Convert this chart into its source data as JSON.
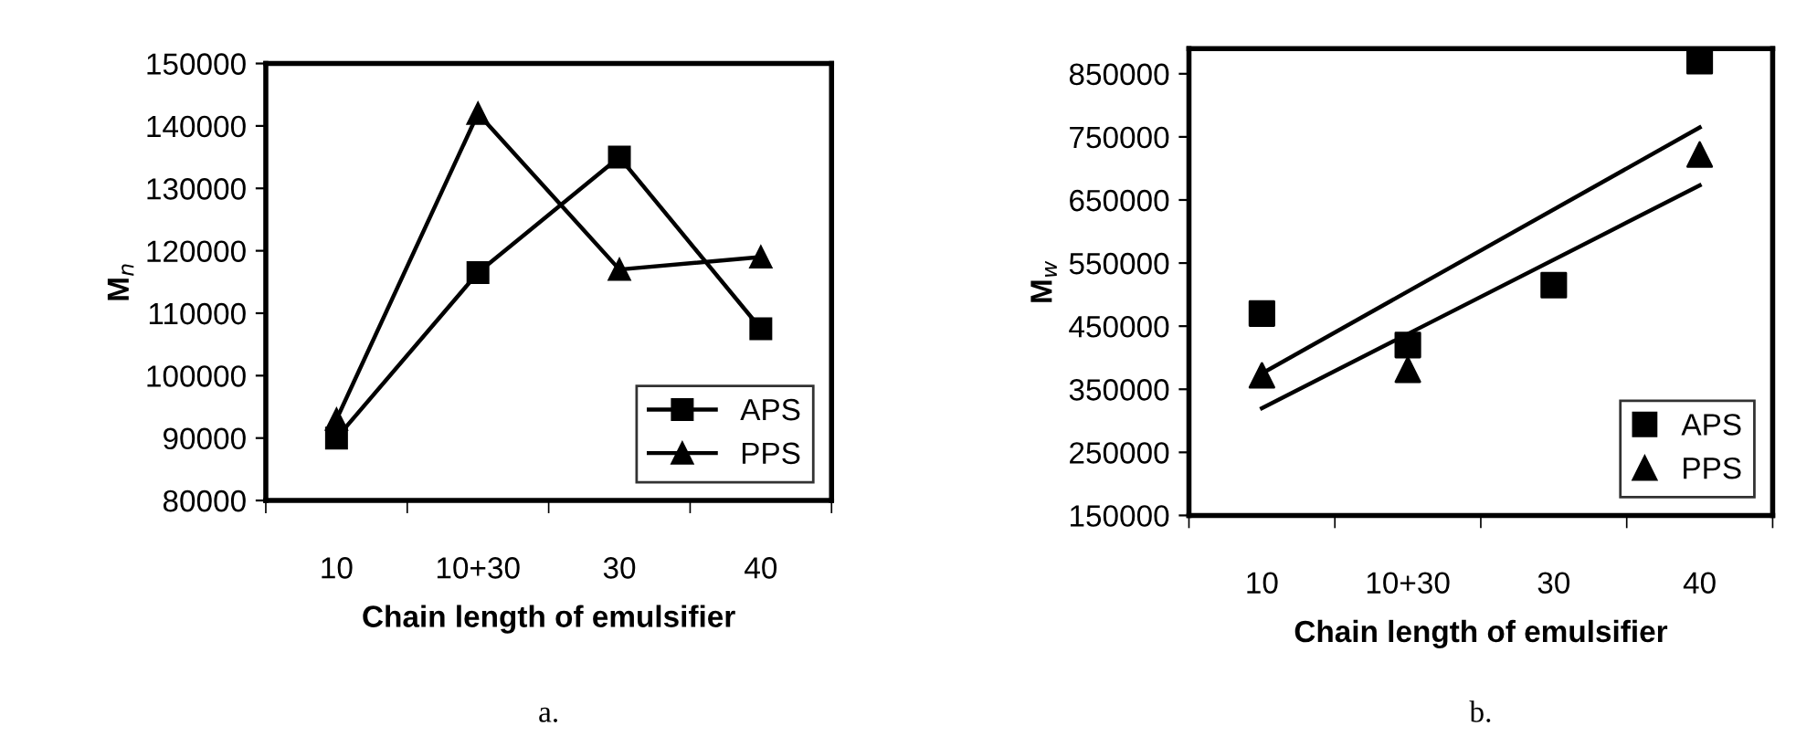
{
  "chart_data": [
    {
      "type": "line",
      "xlabel": "Chain length of emulsifier",
      "ylabel": "M$_{n}$",
      "categories": [
        "10",
        "10+30",
        "30",
        "40"
      ],
      "series": [
        {
          "name": "APS",
          "color": "#000000",
          "marker": "square",
          "values": [
            90000,
            116500,
            135000,
            107500
          ]
        },
        {
          "name": "PPS",
          "color": "#000000",
          "marker": "triangle",
          "values": [
            93000,
            142000,
            117000,
            119000
          ]
        }
      ],
      "ylim": [
        80000,
        150000
      ],
      "yticks": [
        80000,
        90000,
        100000,
        110000,
        120000,
        130000,
        140000,
        150000
      ],
      "grid": false,
      "legend": "lower right",
      "annotations": [
        "a."
      ]
    },
    {
      "type": "scatter",
      "xlabel": "Chain length of emulsifier",
      "ylabel": "M$_{w}$",
      "categories": [
        "10",
        "10+30",
        "30",
        "40"
      ],
      "series": [
        {
          "name": "APS",
          "color": "#000000",
          "marker": "square",
          "values": [
            470000,
            420000,
            515000,
            870000
          ]
        },
        {
          "name": "PPS",
          "color": "#000000",
          "marker": "triangle",
          "values": [
            372000,
            381000,
            null,
            722000
          ]
        },
        {
          "type": "line",
          "color": "#000000",
          "marker": "none",
          "x": [
            "10",
            "40"
          ],
          "values": [
            375000,
            765000
          ]
        },
        {
          "type": "line",
          "color": "#000000",
          "marker": "none",
          "x": [
            "10",
            "40"
          ],
          "values": [
            320000,
            673000
          ]
        }
      ],
      "ylim": [
        150000,
        890000
      ],
      "yticks": [
        150000,
        250000,
        350000,
        450000,
        550000,
        650000,
        750000,
        850000
      ],
      "grid": false,
      "legend": "lower right",
      "annotations": [
        "b."
      ]
    }
  ]
}
